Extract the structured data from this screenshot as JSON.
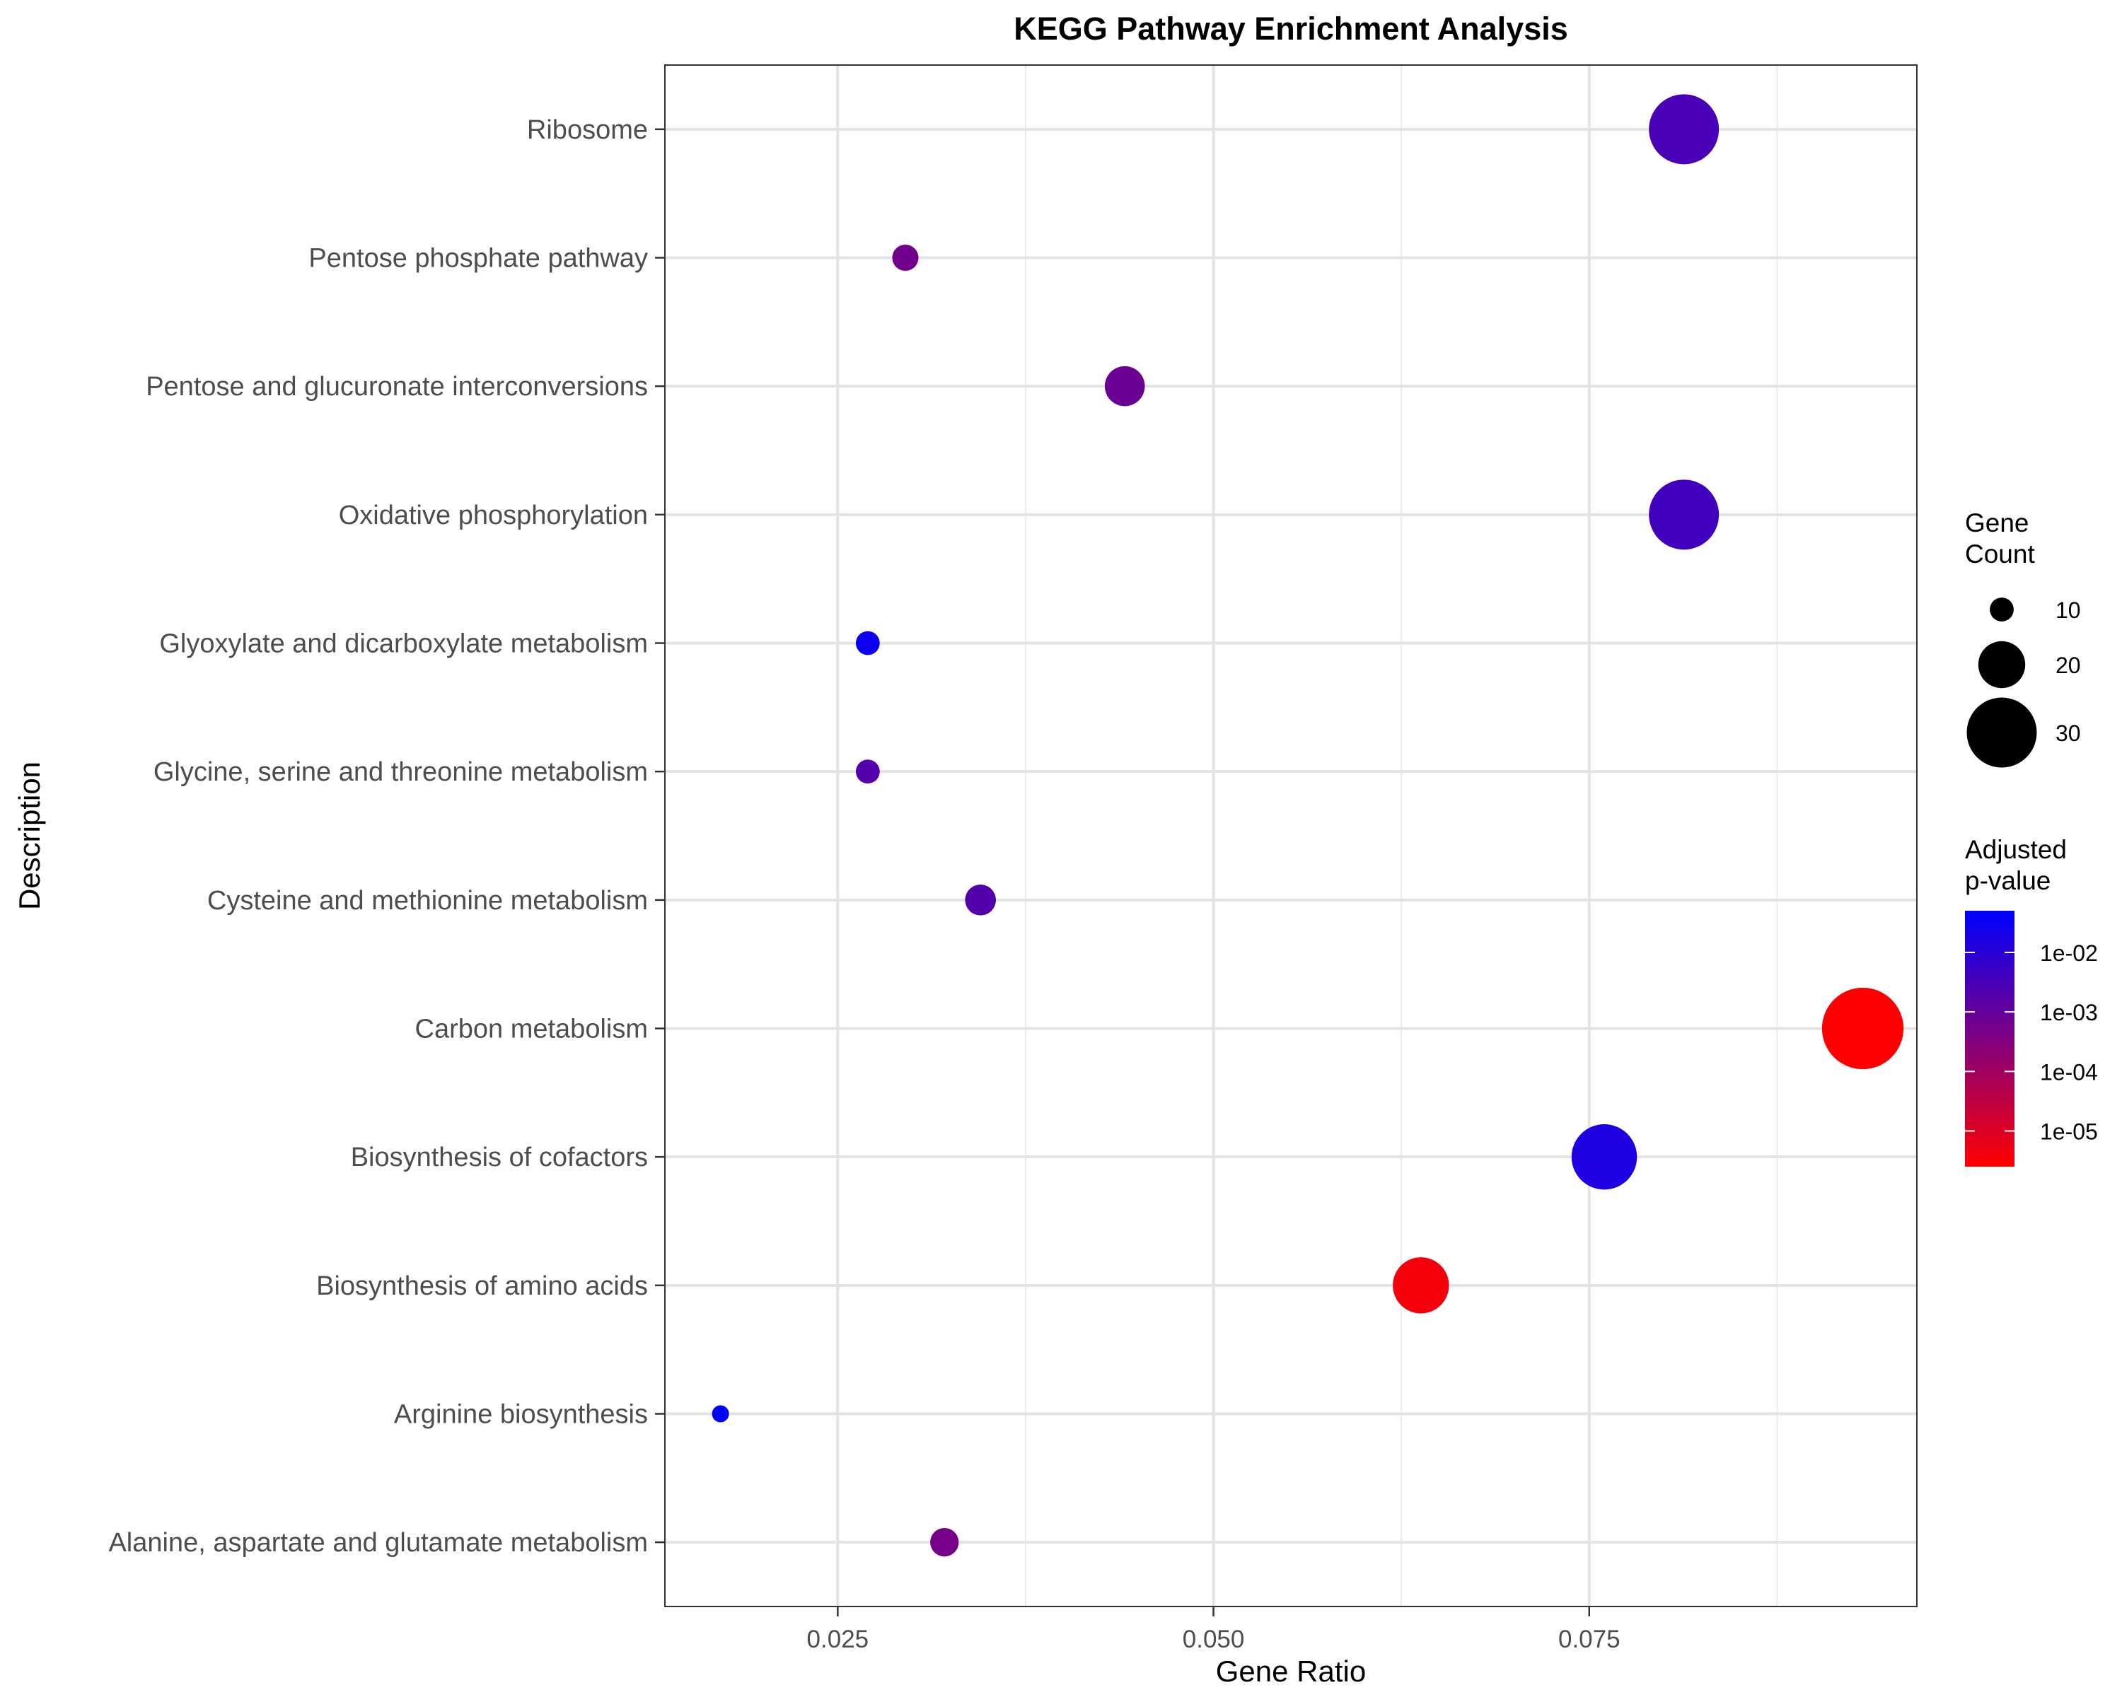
{
  "chart_data": {
    "type": "scatter",
    "title": "KEGG Pathway Enrichment Analysis",
    "xlabel": "Gene Ratio",
    "ylabel": "Description",
    "xlim": [
      0.0135,
      0.0968
    ],
    "x_ticks": [
      0.025,
      0.05,
      0.075
    ],
    "x_tick_labels": [
      "0.025",
      "0.050",
      "0.075"
    ],
    "x_minor_ticks": [
      0.0375,
      0.0625,
      0.0875
    ],
    "grid": true,
    "categories": [
      "Alanine, aspartate and glutamate metabolism",
      "Arginine biosynthesis",
      "Biosynthesis of amino acids",
      "Biosynthesis of cofactors",
      "Carbon metabolism",
      "Cysteine and methionine metabolism",
      "Glycine, serine and threonine metabolism",
      "Glyoxylate and dicarboxylate metabolism",
      "Oxidative phosphorylation",
      "Pentose and glucuronate interconversions",
      "Pentose phosphate pathway",
      "Ribosome"
    ],
    "points": [
      {
        "category": "Alanine, aspartate and glutamate metabolism",
        "gene_ratio": 0.0321,
        "count": 12,
        "p_adjust": 0.0005
      },
      {
        "category": "Arginine biosynthesis",
        "gene_ratio": 0.0172,
        "count": 7,
        "p_adjust": 0.05
      },
      {
        "category": "Biosynthesis of amino acids",
        "gene_ratio": 0.0638,
        "count": 24,
        "p_adjust": 4e-06
      },
      {
        "category": "Biosynthesis of cofactors",
        "gene_ratio": 0.076,
        "count": 28,
        "p_adjust": 0.015
      },
      {
        "category": "Carbon metabolism",
        "gene_ratio": 0.0932,
        "count": 35,
        "p_adjust": 2e-06
      },
      {
        "category": "Cysteine and methionine metabolism",
        "gene_ratio": 0.0345,
        "count": 13,
        "p_adjust": 0.002
      },
      {
        "category": "Glycine, serine and threonine metabolism",
        "gene_ratio": 0.027,
        "count": 10,
        "p_adjust": 0.002
      },
      {
        "category": "Glyoxylate and dicarboxylate metabolism",
        "gene_ratio": 0.027,
        "count": 10,
        "p_adjust": 0.03
      },
      {
        "category": "Oxidative phosphorylation",
        "gene_ratio": 0.0813,
        "count": 30,
        "p_adjust": 0.004
      },
      {
        "category": "Pentose and glucuronate interconversions",
        "gene_ratio": 0.0441,
        "count": 17,
        "p_adjust": 0.0008
      },
      {
        "category": "Pentose phosphate pathway",
        "gene_ratio": 0.0295,
        "count": 11,
        "p_adjust": 0.0006
      },
      {
        "category": "Ribosome",
        "gene_ratio": 0.0813,
        "count": 30,
        "p_adjust": 0.003
      }
    ],
    "size_legend": {
      "title_lines": [
        "Gene",
        "Count"
      ],
      "values": [
        10,
        20,
        30
      ],
      "labels": [
        "10",
        "20",
        "30"
      ]
    },
    "color_legend": {
      "title_lines": [
        "Adjusted",
        "p-value"
      ],
      "log10_range": [
        -5.6,
        -1.3
      ],
      "ticks": [
        0.01,
        0.001,
        0.0001,
        1e-05
      ],
      "labels": [
        "1e-02",
        "1e-03",
        "1e-04",
        "1e-05"
      ],
      "low_color": "#ff0000",
      "high_color": "#0000ff"
    },
    "legend_position": "right"
  }
}
